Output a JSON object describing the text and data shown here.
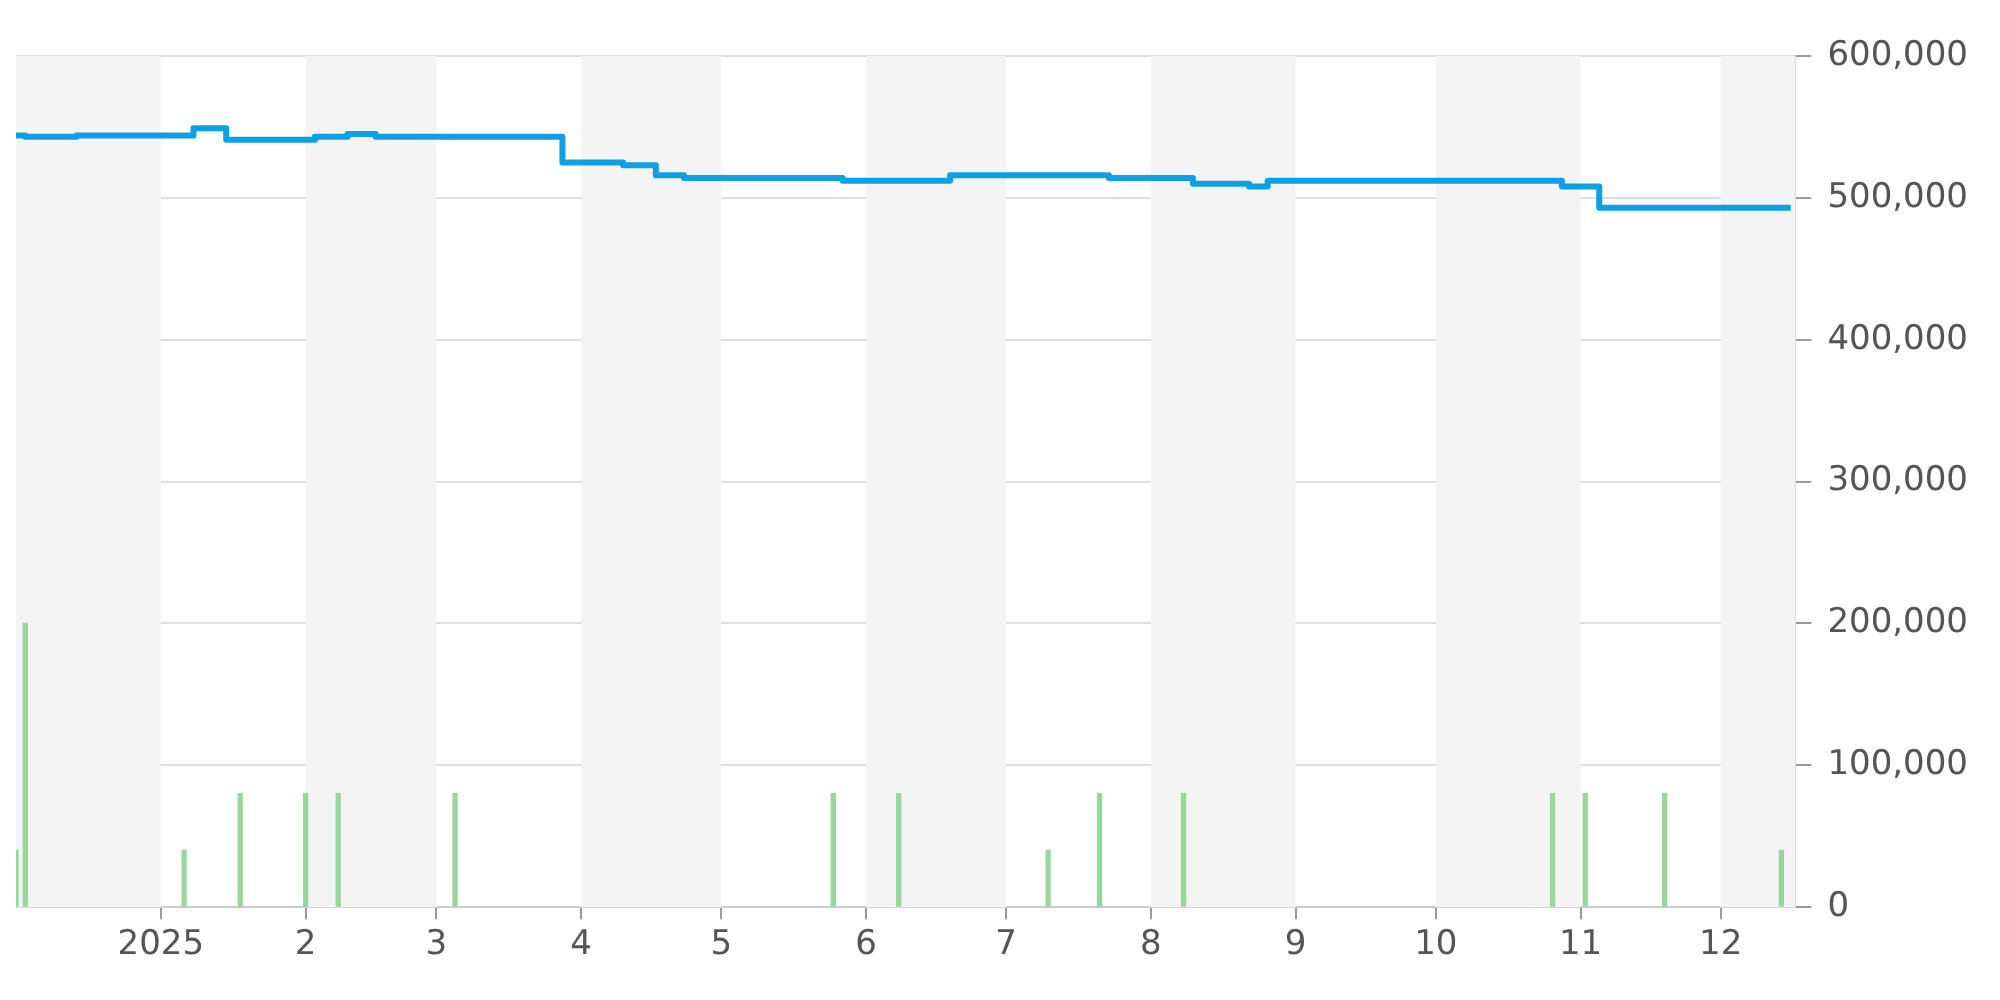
{
  "chart_data": {
    "type": "step",
    "xlim": [
      "2024-12-01",
      "2025-12-17"
    ],
    "xticks": [
      {
        "value": "2025-01-01",
        "label": "2025"
      },
      {
        "value": "2025-02-01",
        "label": "2"
      },
      {
        "value": "2025-03-01",
        "label": "3"
      },
      {
        "value": "2025-04-01",
        "label": "4"
      },
      {
        "value": "2025-05-01",
        "label": "5"
      },
      {
        "value": "2025-06-01",
        "label": "6"
      },
      {
        "value": "2025-07-01",
        "label": "7"
      },
      {
        "value": "2025-08-01",
        "label": "8"
      },
      {
        "value": "2025-09-01",
        "label": "9"
      },
      {
        "value": "2025-10-01",
        "label": "10"
      },
      {
        "value": "2025-11-01",
        "label": "11"
      },
      {
        "value": "2025-12-01",
        "label": "12"
      }
    ],
    "ylim": [
      0,
      600000
    ],
    "yticks": [
      {
        "value": 0,
        "label": "0"
      },
      {
        "value": 100000,
        "label": "100,000"
      },
      {
        "value": 200000,
        "label": "200,000"
      },
      {
        "value": 300000,
        "label": "300,000"
      },
      {
        "value": 400000,
        "label": "400,000"
      },
      {
        "value": 500000,
        "label": "500,000"
      },
      {
        "value": 600000,
        "label": "600,000"
      }
    ],
    "grid": "y",
    "legend": false,
    "bands": [
      {
        "axis": "x",
        "from": "2024-12-01",
        "to": "2025-01-01",
        "color": "#f4f4f4"
      },
      {
        "axis": "x",
        "from": "2025-02-01",
        "to": "2025-03-01",
        "color": "#f4f4f4"
      },
      {
        "axis": "x",
        "from": "2025-04-01",
        "to": "2025-05-01",
        "color": "#f4f4f4"
      },
      {
        "axis": "x",
        "from": "2025-06-01",
        "to": "2025-07-01",
        "color": "#f4f4f4"
      },
      {
        "axis": "x",
        "from": "2025-08-01",
        "to": "2025-09-01",
        "color": "#f4f4f4"
      },
      {
        "axis": "x",
        "from": "2025-10-01",
        "to": "2025-11-01",
        "color": "#f4f4f4"
      },
      {
        "axis": "x",
        "from": "2025-12-01",
        "to": "2025-12-17",
        "color": "#f4f4f4"
      }
    ],
    "series": [
      {
        "color": "#0ea0e6",
        "x": [
          "2024-12-01",
          "2024-12-03",
          "2024-12-14",
          "2025-01-08",
          "2025-01-15",
          "2025-02-03",
          "2025-02-10",
          "2025-02-16",
          "2025-03-28",
          "2025-04-10",
          "2025-04-17",
          "2025-04-23",
          "2025-05-27",
          "2025-06-19",
          "2025-07-23",
          "2025-08-10",
          "2025-08-22",
          "2025-08-26",
          "2025-10-28",
          "2025-11-05",
          "2025-11-19",
          "2025-12-16"
        ],
        "values": [
          545000,
          544000,
          543000,
          544000,
          549000,
          541000,
          543000,
          545000,
          543000,
          525000,
          523000,
          516000,
          514000,
          512000,
          516000,
          514000,
          510000,
          508000,
          512000,
          508000,
          493000,
          493000
        ]
      },
      {
        "type": "bar",
        "color": "#99d69c",
        "x": [
          "2024-12-01",
          "2024-12-03",
          "2025-01-06",
          "2025-01-18",
          "2025-02-01",
          "2025-02-08",
          "2025-03-05",
          "2025-05-25",
          "2025-06-08",
          "2025-07-10",
          "2025-07-21",
          "2025-08-08",
          "2025-10-26",
          "2025-11-02",
          "2025-11-19",
          "2025-12-14"
        ],
        "values": [
          40000,
          200000,
          40000,
          80000,
          80000,
          80000,
          80000,
          80000,
          80000,
          40000,
          80000,
          80000,
          80000,
          80000,
          80000,
          40000
        ]
      }
    ]
  }
}
